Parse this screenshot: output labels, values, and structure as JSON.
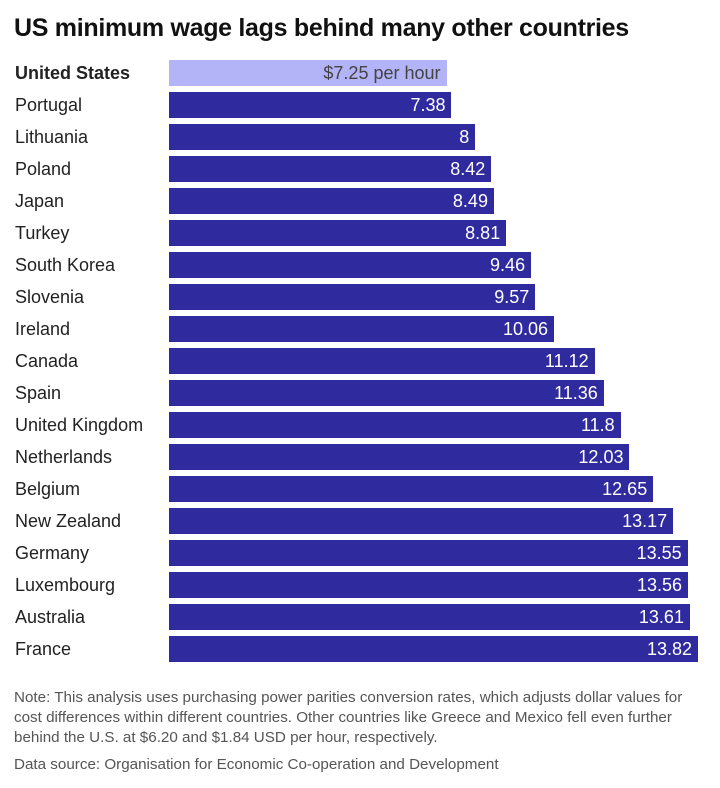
{
  "title": "US minimum wage lags behind many other countries",
  "colors": {
    "highlight": "#b3b3f7",
    "bar": "#2f2a9e",
    "highlight_text": "#444444",
    "bar_text": "#ffffff"
  },
  "chart_data": {
    "type": "bar",
    "orientation": "horizontal",
    "title": "US minimum wage lags behind many other countries",
    "categories": [
      "United States",
      "Portugal",
      "Lithuania",
      "Poland",
      "Japan",
      "Turkey",
      "South Korea",
      "Slovenia",
      "Ireland",
      "Canada",
      "Spain",
      "United Kingdom",
      "Netherlands",
      "Belgium",
      "New Zealand",
      "Germany",
      "Luxembourg",
      "Australia",
      "France"
    ],
    "values": [
      7.25,
      7.38,
      8,
      8.42,
      8.49,
      8.81,
      9.46,
      9.57,
      10.06,
      11.12,
      11.36,
      11.8,
      12.03,
      12.65,
      13.17,
      13.55,
      13.56,
      13.61,
      13.82
    ],
    "data_labels": [
      "$7.25 per hour",
      "7.38",
      "8",
      "8.42",
      "8.49",
      "8.81",
      "9.46",
      "9.57",
      "10.06",
      "11.12",
      "11.36",
      "11.8",
      "12.03",
      "12.65",
      "13.17",
      "13.55",
      "13.56",
      "13.61",
      "13.82"
    ],
    "highlighted": "United States",
    "xlim": [
      0,
      13.82
    ],
    "grid": false
  },
  "note": "Note: This analysis uses purchasing power parities conversion rates, which adjusts dollar values for cost differences within different countries. Other countries like Greece and Mexico fell even further behind the U.S. at $6.20 and $1.84 USD per hour, respectively.",
  "source": "Data source: Organisation for Economic Co-operation and Development"
}
